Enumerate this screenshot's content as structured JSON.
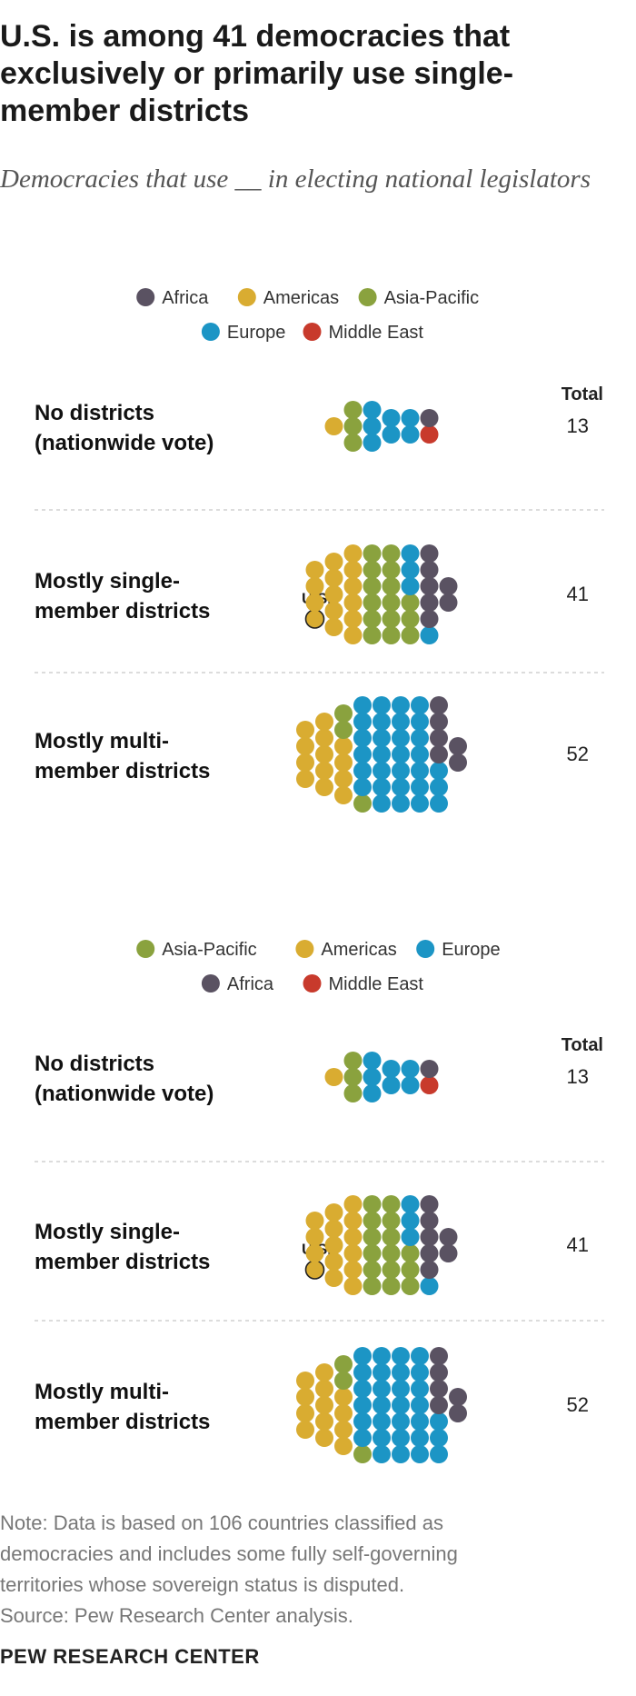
{
  "title": "U.S. is among 41 democracies that exclusively or primarily use single-member districts",
  "subtitle": "Democracies that use __ in electing national legislators",
  "note_lines": [
    "Note: Data is based on 106 countries classified as",
    "democracies and includes some fully self-governing",
    "territories whose sovereign status is disputed.",
    "Source: Pew Research Center analysis."
  ],
  "brand": "PEW RESEARCH CENTER",
  "colors": {
    "Africa": "#5a5262",
    "Americas": "#d9ac31",
    "Asia-Pacific": "#8aa23e",
    "Europe": "#1c95c5",
    "Middle East": "#c83a2c"
  },
  "chart_data": [
    {
      "type": "dot-plot",
      "legend_order": [
        "Africa",
        "Americas",
        "Asia-Pacific",
        "Europe",
        "Middle East"
      ],
      "total_header": "Total",
      "rows": [
        {
          "label": [
            "No districts",
            "(nationwide vote)"
          ],
          "total": 13,
          "counts": {
            "Americas": 1,
            "Asia-Pacific": 3,
            "Europe": 7,
            "Middle East": 1,
            "Africa": 1
          }
        },
        {
          "label": [
            "Mostly single-",
            "member districts"
          ],
          "total": 41,
          "annotation": "U.S.",
          "counts": {
            "Americas": 15,
            "Asia-Pacific": 15,
            "Europe": 4,
            "Africa": 7
          }
        },
        {
          "label": [
            "Mostly multi-",
            "member districts"
          ],
          "total": 52,
          "counts": {
            "Americas": 13,
            "Asia-Pacific": 3,
            "Europe": 30,
            "Africa": 6
          }
        }
      ]
    },
    {
      "type": "dot-plot",
      "legend_order": [
        "Asia-Pacific",
        "Americas",
        "Europe",
        "Africa",
        "Middle East"
      ],
      "total_header": "Total",
      "rows": [
        {
          "label": [
            "No districts",
            "(nationwide vote)"
          ],
          "total": 13,
          "counts": {
            "Americas": 1,
            "Asia-Pacific": 3,
            "Europe": 7,
            "Middle East": 1,
            "Africa": 1
          }
        },
        {
          "label": [
            "Mostly single-",
            "member districts"
          ],
          "total": 41,
          "annotation": "U.S.",
          "counts": {
            "Americas": 15,
            "Asia-Pacific": 15,
            "Europe": 4,
            "Africa": 7
          }
        },
        {
          "label": [
            "Mostly multi-",
            "member districts"
          ],
          "total": 52,
          "counts": {
            "Americas": 13,
            "Asia-Pacific": 3,
            "Europe": 30,
            "Africa": 6
          }
        }
      ]
    }
  ]
}
